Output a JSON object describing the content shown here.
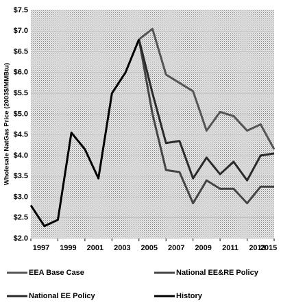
{
  "chart_data": {
    "type": "line",
    "y_label": "Wholesale NatGas Price (2003$/MMBtu)",
    "x": [
      1997,
      1998,
      1999,
      2000,
      2001,
      2002,
      2003,
      2004,
      2005,
      2006,
      2007,
      2008,
      2009,
      2010,
      2011,
      2012,
      2013,
      2014,
      2015
    ],
    "xlim": [
      1997,
      2015
    ],
    "xticks": [
      1997,
      1999,
      2001,
      2003,
      2005,
      2007,
      2009,
      2011,
      2013,
      2015
    ],
    "ylim": [
      2.0,
      7.5
    ],
    "yticks": [
      {
        "value": 2.0,
        "label": "$2.0"
      },
      {
        "value": 2.5,
        "label": "$2.5"
      },
      {
        "value": 3.0,
        "label": "$3.0"
      },
      {
        "value": 3.5,
        "label": "$3.5"
      },
      {
        "value": 4.0,
        "label": "$4.0"
      },
      {
        "value": 4.5,
        "label": "$4.5"
      },
      {
        "value": 5.0,
        "label": "$5.0"
      },
      {
        "value": 5.5,
        "label": "$5.5"
      },
      {
        "value": 6.0,
        "label": "$6.0"
      },
      {
        "value": 6.5,
        "label": "$6.5"
      },
      {
        "value": 7.0,
        "label": "$7.0"
      },
      {
        "value": 7.5,
        "label": "$7.5"
      }
    ],
    "series": [
      {
        "name": "EEA Base Case",
        "color": "#555555",
        "values": [
          null,
          null,
          null,
          null,
          null,
          null,
          null,
          null,
          6.8,
          7.05,
          5.95,
          5.75,
          5.55,
          4.6,
          5.05,
          4.95,
          4.6,
          4.75,
          4.15
        ]
      },
      {
        "name": "National EE&RE Policy",
        "color": "#444444",
        "values": [
          null,
          null,
          null,
          null,
          null,
          null,
          null,
          null,
          6.8,
          5.0,
          3.65,
          3.6,
          2.85,
          3.4,
          3.2,
          3.2,
          2.85,
          3.25,
          3.25
        ]
      },
      {
        "name": "National EE Policy",
        "color": "#2a2a2a",
        "values": [
          null,
          null,
          null,
          null,
          null,
          null,
          null,
          null,
          6.8,
          5.5,
          4.3,
          4.35,
          3.45,
          3.95,
          3.55,
          3.85,
          3.4,
          4.0,
          4.05
        ]
      },
      {
        "name": "History",
        "color": "#000000",
        "values": [
          2.8,
          2.3,
          2.45,
          4.55,
          4.15,
          3.45,
          5.5,
          6.0,
          6.8,
          null,
          null,
          null,
          null,
          null,
          null,
          null,
          null,
          null,
          null
        ]
      }
    ]
  }
}
